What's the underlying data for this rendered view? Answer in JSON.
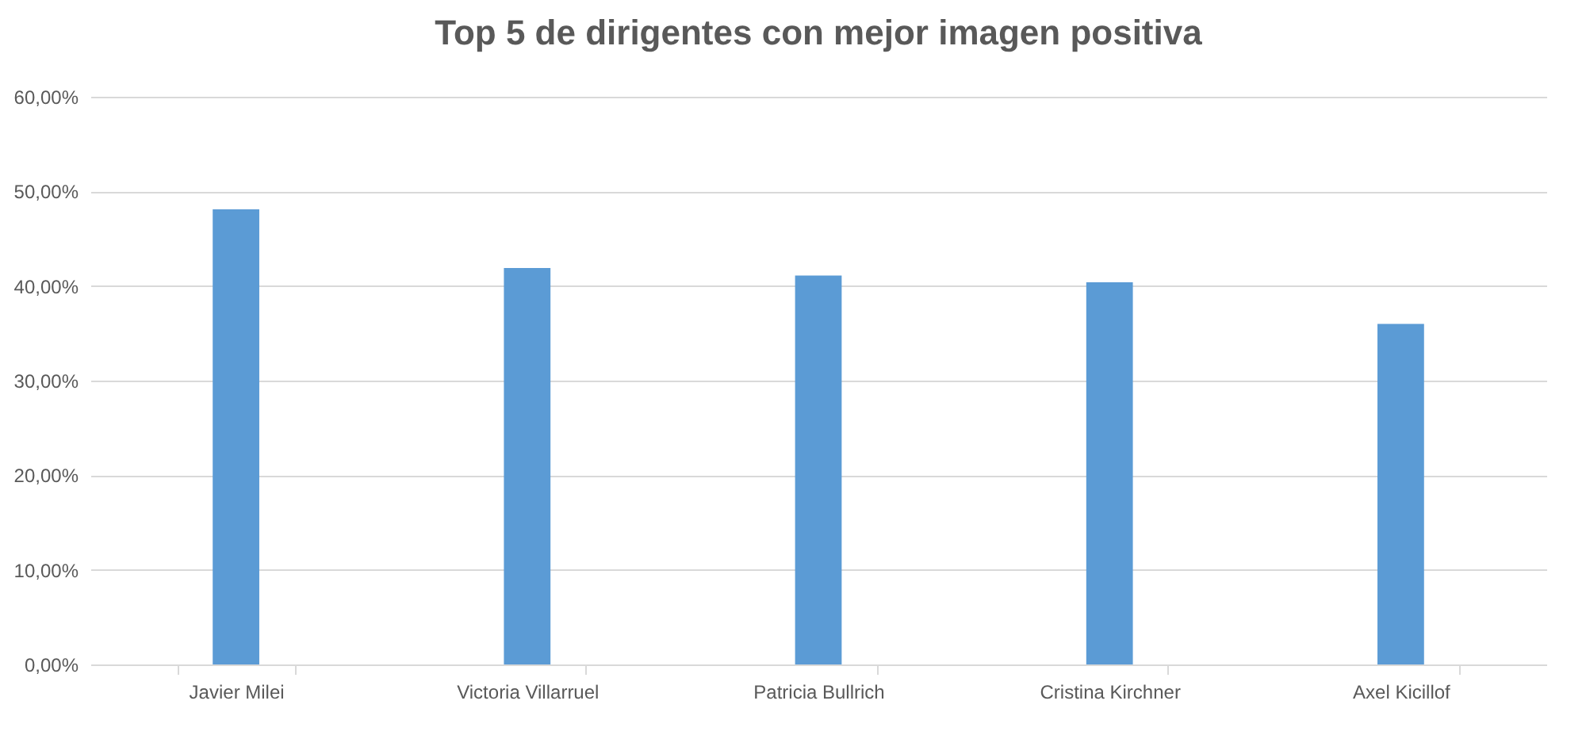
{
  "chart_data": {
    "type": "bar",
    "title": "Top 5 de dirigentes con mejor imagen positiva",
    "categories": [
      "Javier Milei",
      "Victoria Villarruel",
      "Patricia Bullrich",
      "Cristina Kirchner",
      "Axel Kicillof"
    ],
    "values": [
      48.1,
      41.9,
      41.1,
      40.4,
      36.0
    ],
    "color": "#5b9bd5",
    "ylim": [
      0,
      60
    ],
    "yticks": [
      {
        "value": 0,
        "label": "0,00%"
      },
      {
        "value": 10,
        "label": "10,00%"
      },
      {
        "value": 20,
        "label": "20,00%"
      },
      {
        "value": 30,
        "label": "30,00%"
      },
      {
        "value": 40,
        "label": "40,00%"
      },
      {
        "value": 50,
        "label": "50,00%"
      },
      {
        "value": 60,
        "label": "60,00%"
      }
    ],
    "grid": "y"
  }
}
